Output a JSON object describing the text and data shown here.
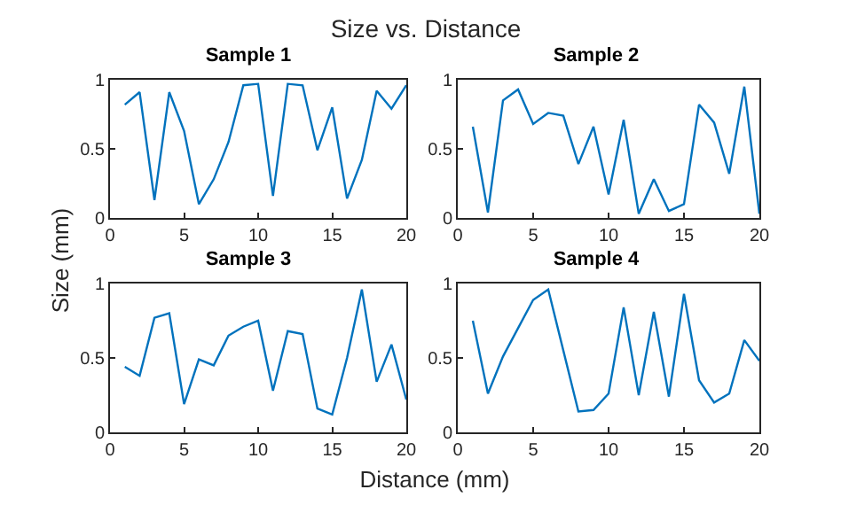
{
  "chart_data": [
    {
      "type": "line",
      "title": "Sample 1",
      "annotations": [
        "Size vs. Distance",
        "Distance (mm)",
        "Size (mm)"
      ],
      "x": [
        1,
        2,
        3,
        4,
        5,
        6,
        7,
        8,
        9,
        10,
        11,
        12,
        13,
        14,
        15,
        16,
        17,
        18,
        19,
        20
      ],
      "series": [
        {
          "color": "#0072bd",
          "values": [
            0.82,
            0.91,
            0.13,
            0.91,
            0.63,
            0.1,
            0.28,
            0.55,
            0.96,
            0.97,
            0.16,
            0.97,
            0.96,
            0.49,
            0.8,
            0.14,
            0.42,
            0.92,
            0.79,
            0.96
          ]
        }
      ],
      "xlim": [
        0,
        20
      ],
      "xticks": [
        0,
        5,
        10,
        15,
        20
      ],
      "ylim": [
        0,
        1
      ],
      "yticks": [
        0,
        0.5,
        1
      ],
      "grid": false,
      "legend": false
    },
    {
      "type": "line",
      "title": "Sample 2",
      "x": [
        1,
        2,
        3,
        4,
        5,
        6,
        7,
        8,
        9,
        10,
        11,
        12,
        13,
        14,
        15,
        16,
        17,
        18,
        19,
        20
      ],
      "series": [
        {
          "color": "#0072bd",
          "values": [
            0.66,
            0.04,
            0.85,
            0.93,
            0.68,
            0.76,
            0.74,
            0.39,
            0.66,
            0.17,
            0.71,
            0.03,
            0.28,
            0.05,
            0.1,
            0.82,
            0.69,
            0.32,
            0.95,
            0.03
          ]
        }
      ],
      "xlim": [
        0,
        20
      ],
      "xticks": [
        0,
        5,
        10,
        15,
        20
      ],
      "ylim": [
        0,
        1
      ],
      "yticks": [
        0,
        0.5,
        1
      ],
      "grid": false,
      "legend": false
    },
    {
      "type": "line",
      "title": "Sample 3",
      "x": [
        1,
        2,
        3,
        4,
        5,
        6,
        7,
        8,
        9,
        10,
        11,
        12,
        13,
        14,
        15,
        16,
        17,
        18,
        19,
        20
      ],
      "series": [
        {
          "color": "#0072bd",
          "values": [
            0.44,
            0.38,
            0.77,
            0.8,
            0.19,
            0.49,
            0.45,
            0.65,
            0.71,
            0.75,
            0.28,
            0.68,
            0.66,
            0.16,
            0.12,
            0.5,
            0.96,
            0.34,
            0.59,
            0.22
          ]
        }
      ],
      "xlim": [
        0,
        20
      ],
      "xticks": [
        0,
        5,
        10,
        15,
        20
      ],
      "ylim": [
        0,
        1
      ],
      "yticks": [
        0,
        0.5,
        1
      ],
      "grid": false,
      "legend": false
    },
    {
      "type": "line",
      "title": "Sample 4",
      "x": [
        1,
        2,
        3,
        4,
        5,
        6,
        7,
        8,
        9,
        10,
        11,
        12,
        13,
        14,
        15,
        16,
        17,
        18,
        19,
        20
      ],
      "series": [
        {
          "color": "#0072bd",
          "values": [
            0.75,
            0.26,
            0.51,
            0.7,
            0.89,
            0.96,
            0.55,
            0.14,
            0.15,
            0.26,
            0.84,
            0.25,
            0.81,
            0.24,
            0.93,
            0.35,
            0.2,
            0.26,
            0.62,
            0.48
          ]
        }
      ],
      "xlim": [
        0,
        20
      ],
      "xticks": [
        0,
        5,
        10,
        15,
        20
      ],
      "ylim": [
        0,
        1
      ],
      "yticks": [
        0,
        0.5,
        1
      ],
      "grid": false,
      "legend": false
    }
  ]
}
